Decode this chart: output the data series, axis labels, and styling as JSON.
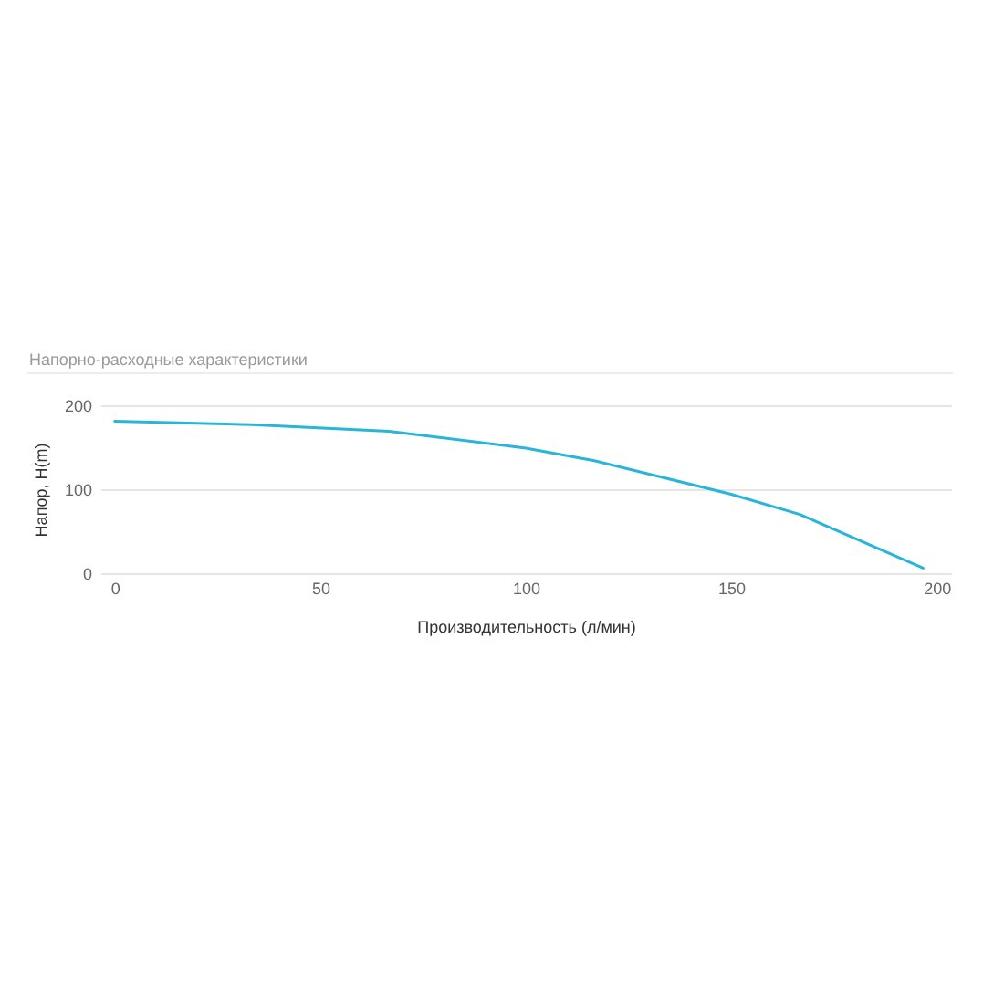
{
  "chart_data": {
    "type": "line",
    "title": "Напорно-расходные характеристики",
    "xlabel": "Производительность (л/мин)",
    "ylabel": "Напор, H(m)",
    "x": [
      0,
      33.3,
      66.7,
      100,
      116.7,
      150,
      166.7,
      196.7
    ],
    "values": [
      181,
      177,
      169,
      149,
      134,
      94,
      70,
      6
    ],
    "color": "#29b5d9",
    "xlim": [
      -3.5,
      203.5
    ],
    "xticks": [
      0,
      50,
      100,
      150,
      200
    ],
    "ylim": [
      0,
      200
    ],
    "yticks": [
      0,
      100,
      200
    ],
    "grid": "y",
    "legend": false
  }
}
